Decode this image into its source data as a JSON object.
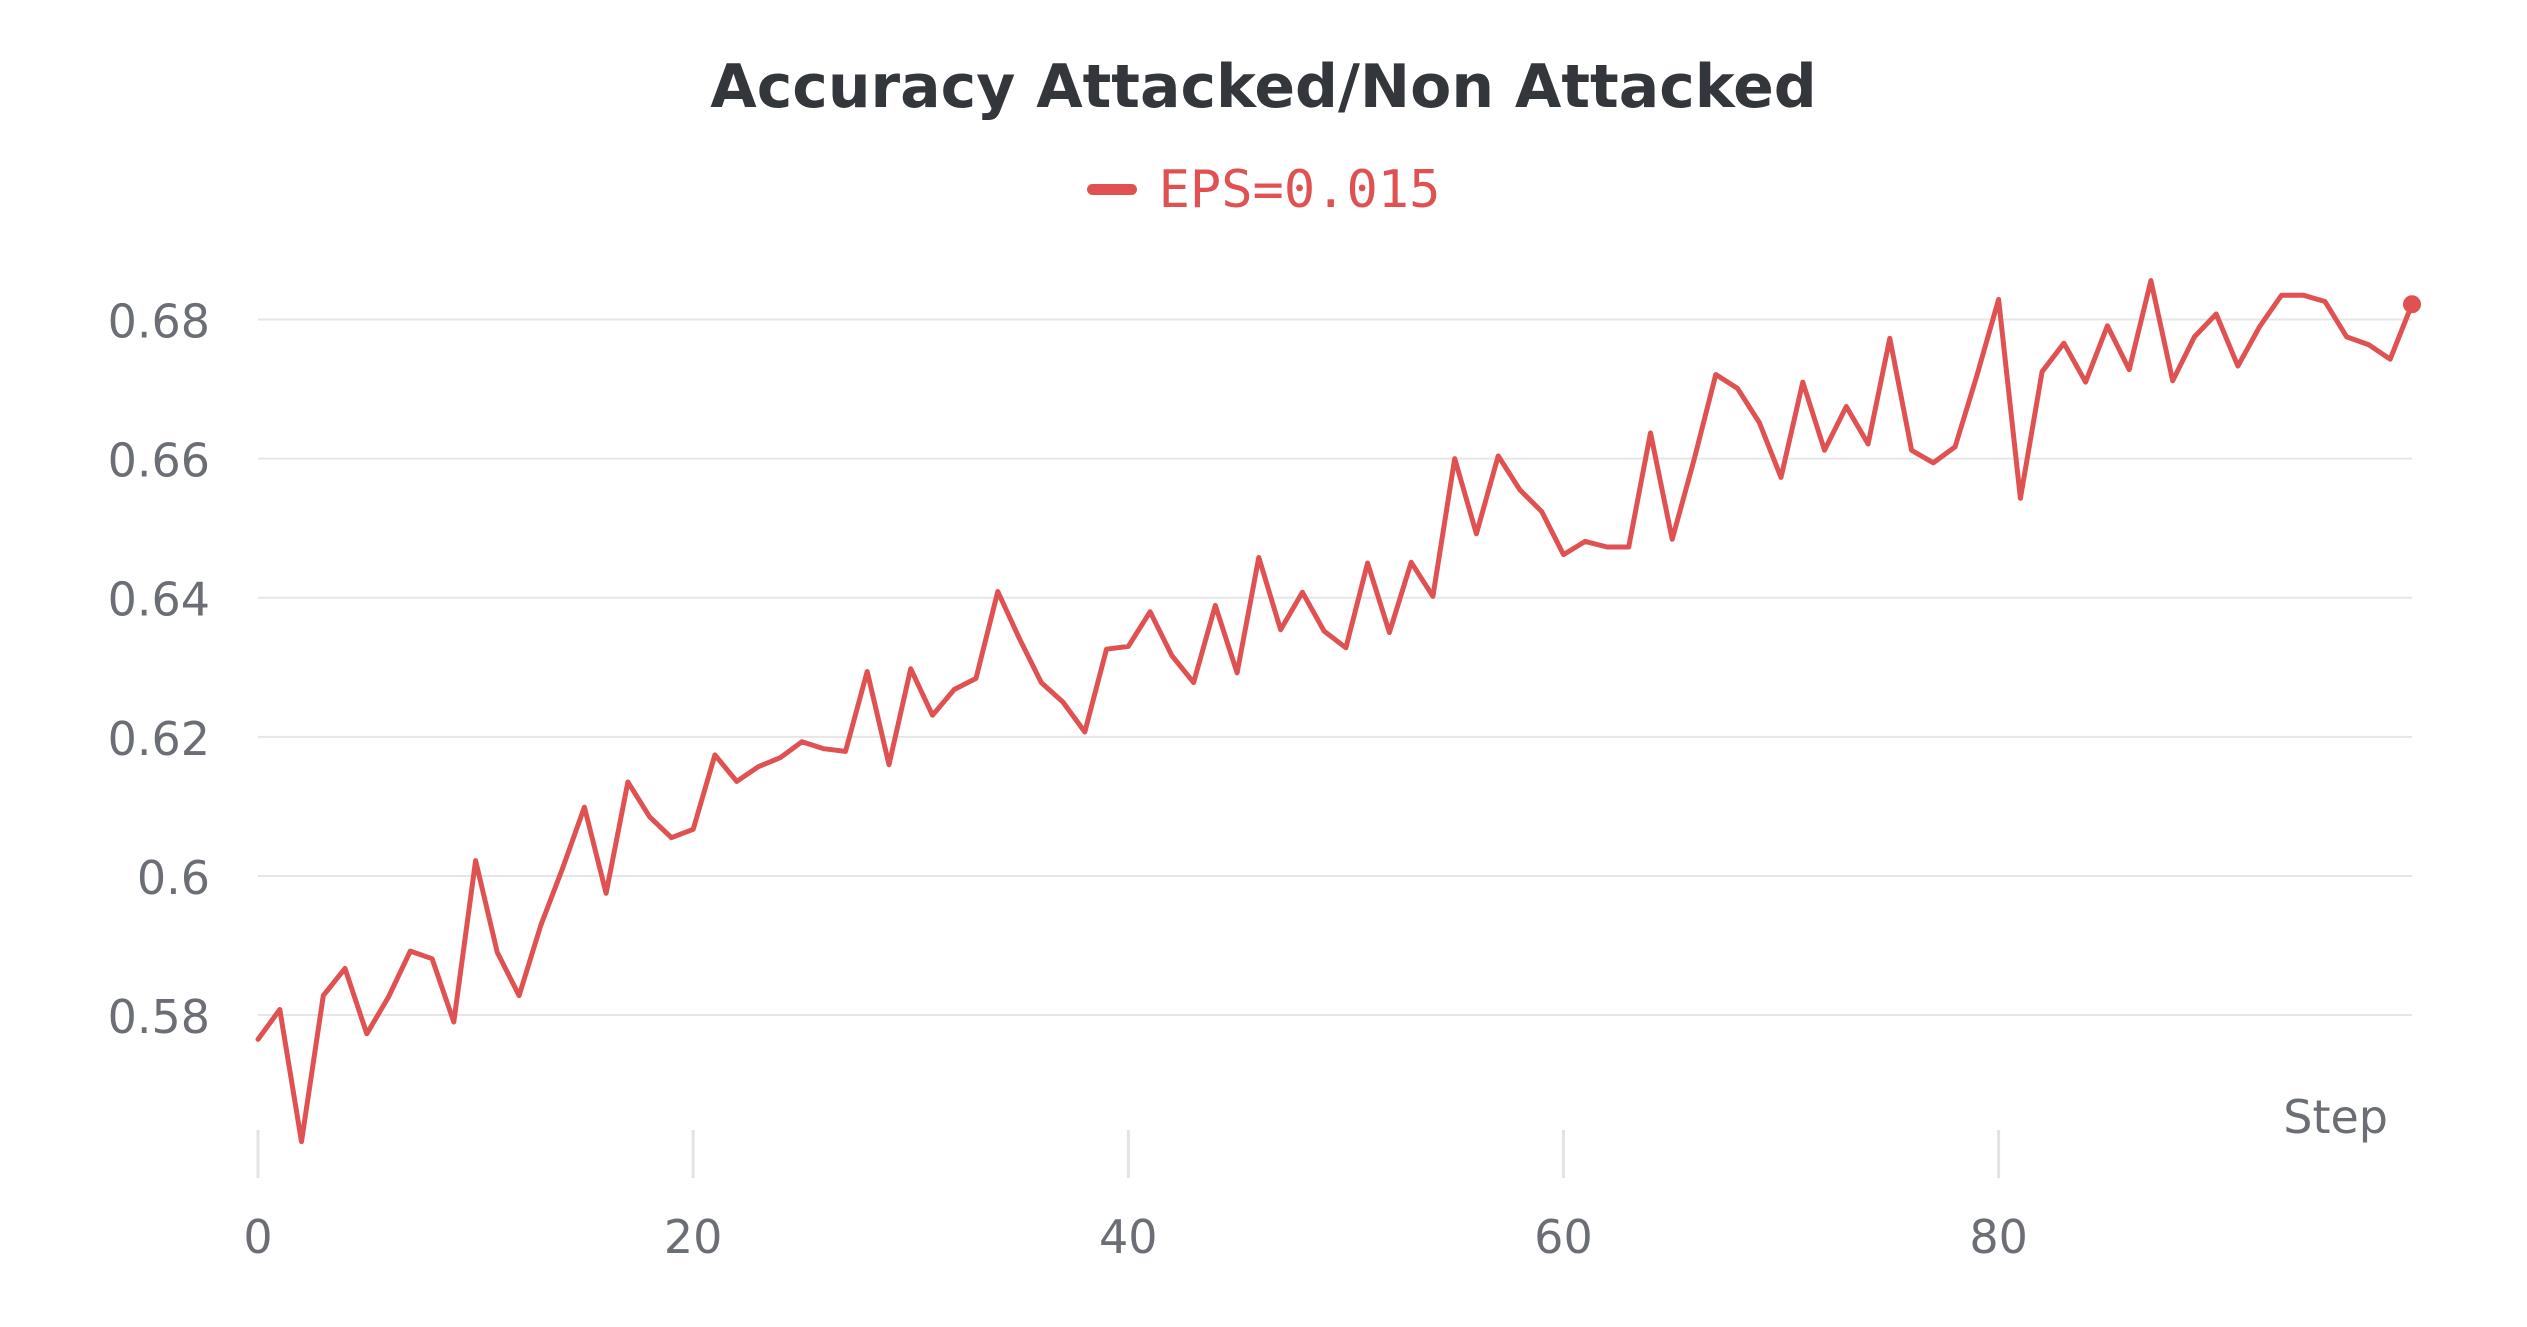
{
  "chart_data": {
    "type": "line",
    "title": "Accuracy Attacked/Non Attacked",
    "xlabel": "Step",
    "ylabel": "",
    "xlim": [
      0,
      99
    ],
    "ylim": [
      0.557,
      0.69
    ],
    "xticks": [
      0,
      20,
      40,
      60,
      80
    ],
    "yticks": [
      0.58,
      0.6,
      0.62,
      0.64,
      0.66,
      0.68
    ],
    "ytick_labels": [
      "0.58",
      "0.6",
      "0.62",
      "0.64",
      "0.66",
      "0.68"
    ],
    "grid": true,
    "legend_position": "top-center",
    "series": [
      {
        "name": "EPS=0.015",
        "color": "#e05252",
        "x": [
          0,
          1,
          2,
          3,
          4,
          5,
          6,
          7,
          8,
          9,
          10,
          11,
          12,
          13,
          14,
          15,
          16,
          17,
          18,
          19,
          20,
          21,
          22,
          23,
          24,
          25,
          26,
          27,
          28,
          29,
          30,
          31,
          32,
          33,
          34,
          35,
          36,
          37,
          38,
          39,
          40,
          41,
          42,
          43,
          44,
          45,
          46,
          47,
          48,
          49,
          50,
          51,
          52,
          53,
          54,
          55,
          56,
          57,
          58,
          59,
          60,
          61,
          62,
          63,
          64,
          65,
          66,
          67,
          68,
          69,
          70,
          71,
          72,
          73,
          74,
          75,
          76,
          77,
          78,
          79,
          80,
          81,
          82,
          83,
          84,
          85,
          86,
          87,
          88,
          89,
          90,
          91,
          92,
          93,
          94,
          95,
          96,
          97,
          98,
          99
        ],
        "values": [
          0.5765,
          0.5808,
          0.5618,
          0.5828,
          0.5867,
          0.5773,
          0.5826,
          0.5892,
          0.5881,
          0.579,
          0.6022,
          0.589,
          0.5828,
          0.5929,
          0.6011,
          0.6099,
          0.5975,
          0.6135,
          0.6085,
          0.6055,
          0.6067,
          0.6174,
          0.6136,
          0.6157,
          0.617,
          0.6193,
          0.6183,
          0.6179,
          0.6294,
          0.616,
          0.6298,
          0.6231,
          0.6268,
          0.6284,
          0.6409,
          0.6341,
          0.6278,
          0.625,
          0.6207,
          0.6326,
          0.633,
          0.638,
          0.6317,
          0.6278,
          0.6389,
          0.6292,
          0.6458,
          0.6354,
          0.6408,
          0.6352,
          0.6328,
          0.645,
          0.635,
          0.6451,
          0.6402,
          0.66,
          0.6492,
          0.6604,
          0.6555,
          0.6524,
          0.6462,
          0.6481,
          0.6473,
          0.6473,
          0.6637,
          0.6484,
          0.6598,
          0.6721,
          0.6701,
          0.6652,
          0.6573,
          0.671,
          0.6612,
          0.6675,
          0.6621,
          0.6773,
          0.6612,
          0.6594,
          0.6617,
          0.6719,
          0.6829,
          0.6543,
          0.6725,
          0.6766,
          0.671,
          0.6791,
          0.6728,
          0.6856,
          0.6712,
          0.6775,
          0.6808,
          0.6733,
          0.679,
          0.6835,
          0.6835,
          0.6826,
          0.6775,
          0.6764,
          0.6743,
          0.6822
        ]
      }
    ]
  }
}
